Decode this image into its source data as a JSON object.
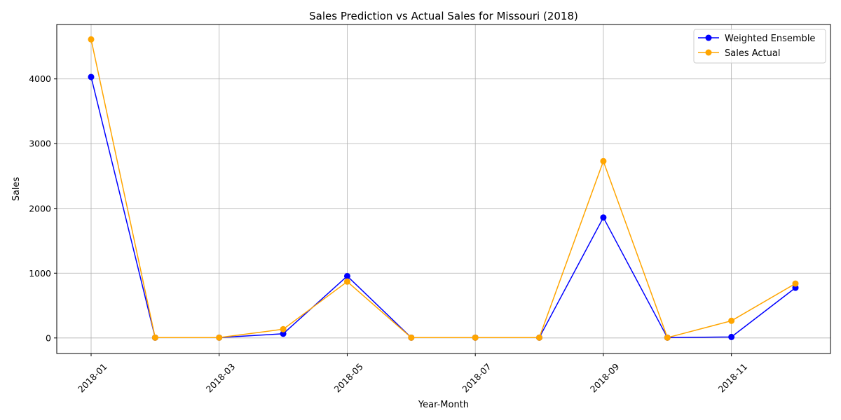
{
  "chart_data": {
    "type": "line",
    "title": "Sales Prediction vs Actual Sales for Missouri (2018)",
    "xlabel": "Year-Month",
    "ylabel": "Sales",
    "x": [
      "2018-01",
      "2018-02",
      "2018-03",
      "2018-04",
      "2018-05",
      "2018-06",
      "2018-07",
      "2018-08",
      "2018-09",
      "2018-10",
      "2018-11",
      "2018-12"
    ],
    "x_tick_labels": [
      "2018-01",
      "2018-03",
      "2018-05",
      "2018-07",
      "2018-09",
      "2018-11"
    ],
    "y_ticks": [
      0,
      1000,
      2000,
      3000,
      4000
    ],
    "ylim": [
      -240,
      4840
    ],
    "grid": true,
    "legend_position": "top-right",
    "series": [
      {
        "name": "Weighted Ensemble",
        "color": "#0000ff",
        "marker": "circle",
        "values": [
          4030,
          5,
          5,
          65,
          955,
          5,
          5,
          5,
          1860,
          5,
          15,
          775
        ]
      },
      {
        "name": "Sales Actual",
        "color": "#ffa500",
        "marker": "circle",
        "values": [
          4610,
          5,
          5,
          135,
          870,
          5,
          5,
          5,
          2730,
          5,
          265,
          840
        ]
      }
    ]
  }
}
